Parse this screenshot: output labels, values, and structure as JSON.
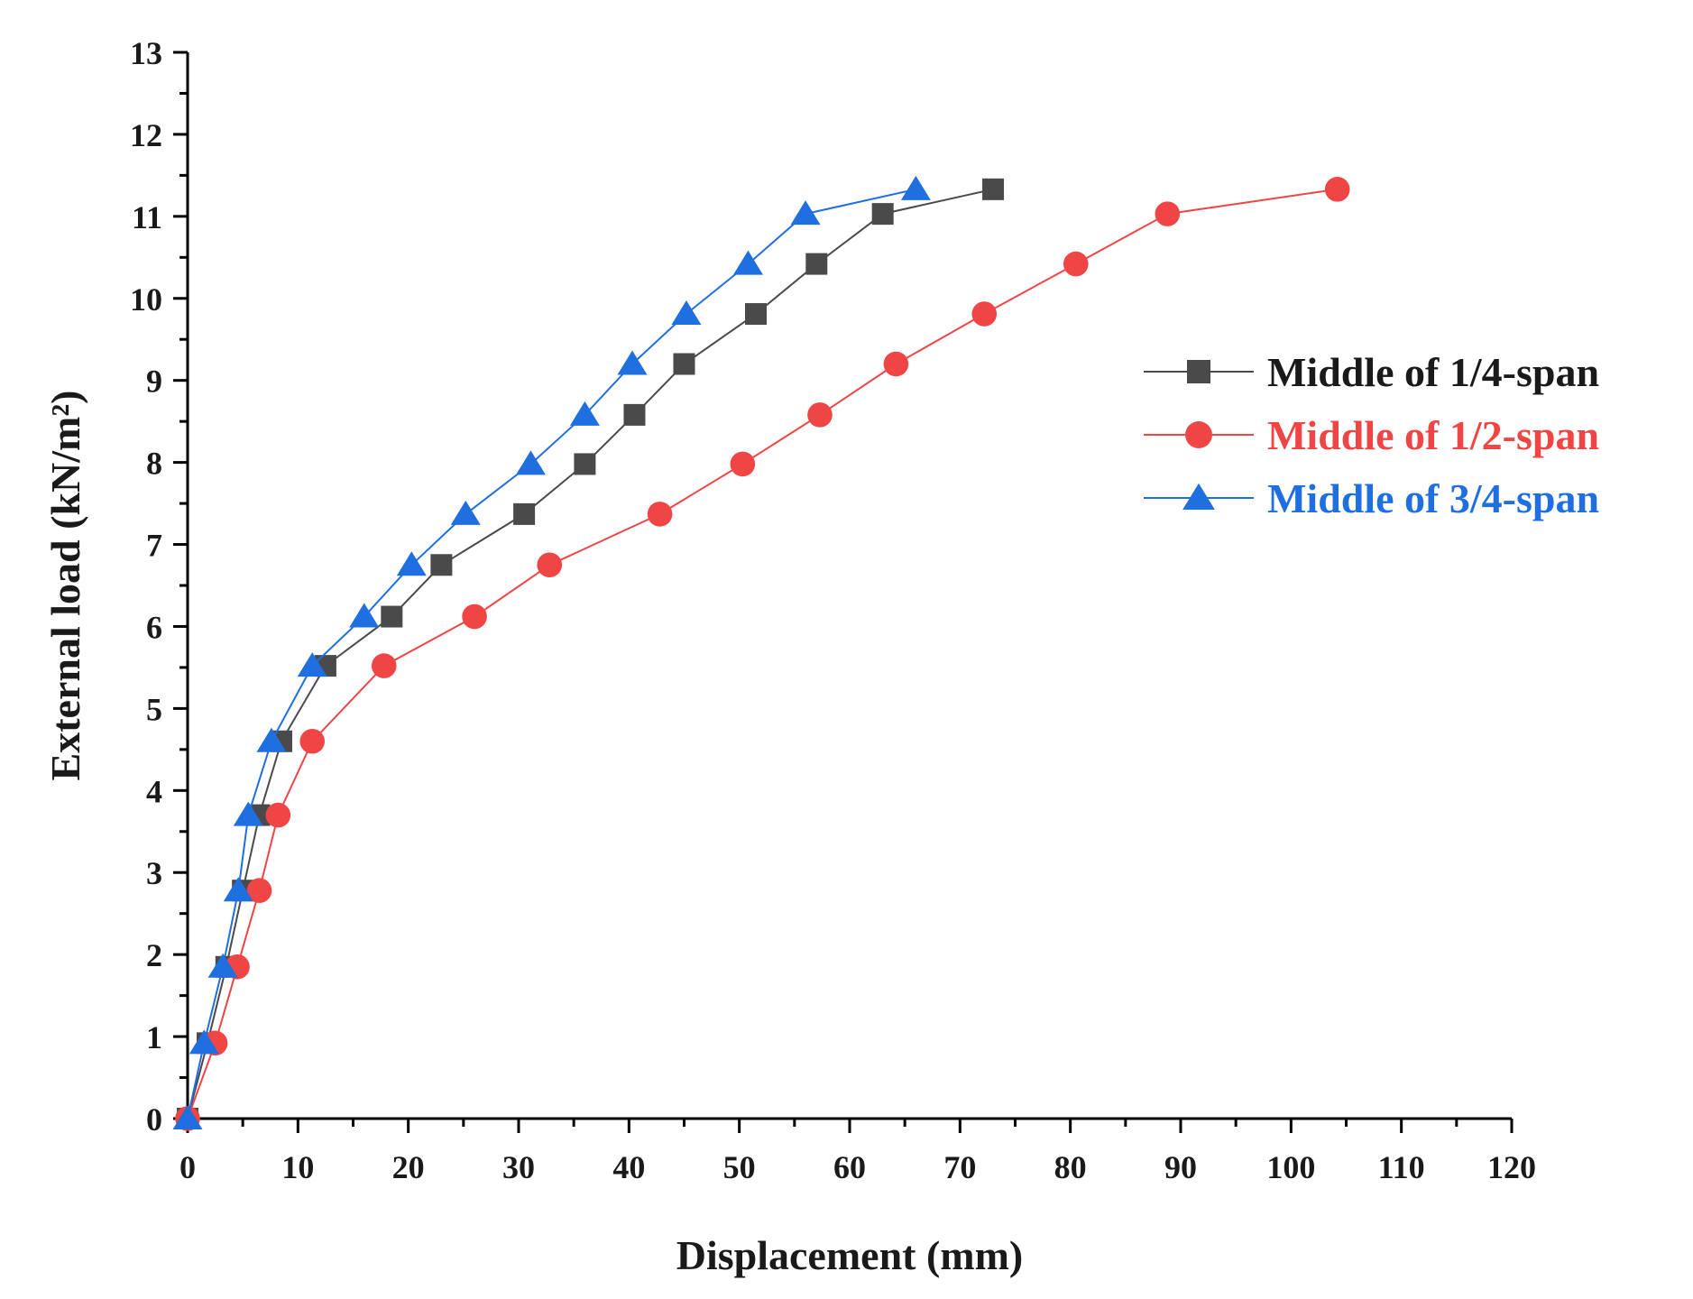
{
  "chart_data": {
    "type": "line",
    "xlabel": "Displacement (mm)",
    "ylabel": "External load (kN/m²)",
    "xlim": [
      0,
      120
    ],
    "ylim": [
      0,
      13
    ],
    "xticks": [
      0,
      10,
      20,
      30,
      40,
      50,
      60,
      70,
      80,
      90,
      100,
      110,
      120
    ],
    "yticks": [
      0,
      1,
      2,
      3,
      4,
      5,
      6,
      7,
      8,
      9,
      10,
      11,
      12,
      13
    ],
    "legend_position": "right",
    "series": [
      {
        "name": "Middle of 1/4-span",
        "color": "#4a4a4a",
        "marker": "square",
        "x": [
          0,
          1.8,
          3.5,
          5.0,
          6.5,
          8.5,
          12.5,
          18.5,
          23.0,
          30.5,
          36.0,
          40.5,
          45.0,
          51.5,
          57.0,
          63.0,
          73.0
        ],
        "y": [
          0,
          0.92,
          1.85,
          2.78,
          3.7,
          4.6,
          5.52,
          6.12,
          6.75,
          7.37,
          7.98,
          8.58,
          9.2,
          9.81,
          10.42,
          11.03,
          11.33
        ]
      },
      {
        "name": "Middle of 1/2-span",
        "color": "#f04545",
        "marker": "circle",
        "x": [
          0,
          2.5,
          4.5,
          6.5,
          8.2,
          11.3,
          17.8,
          26.0,
          32.8,
          42.8,
          50.3,
          57.3,
          64.2,
          72.2,
          80.5,
          88.8,
          104.2
        ],
        "y": [
          0,
          0.92,
          1.85,
          2.78,
          3.7,
          4.6,
          5.52,
          6.12,
          6.75,
          7.37,
          7.98,
          8.58,
          9.2,
          9.81,
          10.42,
          11.03,
          11.33
        ]
      },
      {
        "name": "Middle of 3/4-span",
        "color": "#1f6fe0",
        "marker": "triangle",
        "x": [
          0,
          1.5,
          3.2,
          4.6,
          5.5,
          7.6,
          11.3,
          16.0,
          20.3,
          25.2,
          31.1,
          36.0,
          40.3,
          45.2,
          50.8,
          56.0,
          66.0
        ],
        "y": [
          0,
          0.92,
          1.85,
          2.78,
          3.7,
          4.6,
          5.52,
          6.12,
          6.75,
          7.37,
          7.98,
          8.58,
          9.2,
          9.81,
          10.42,
          11.03,
          11.33
        ]
      }
    ]
  }
}
